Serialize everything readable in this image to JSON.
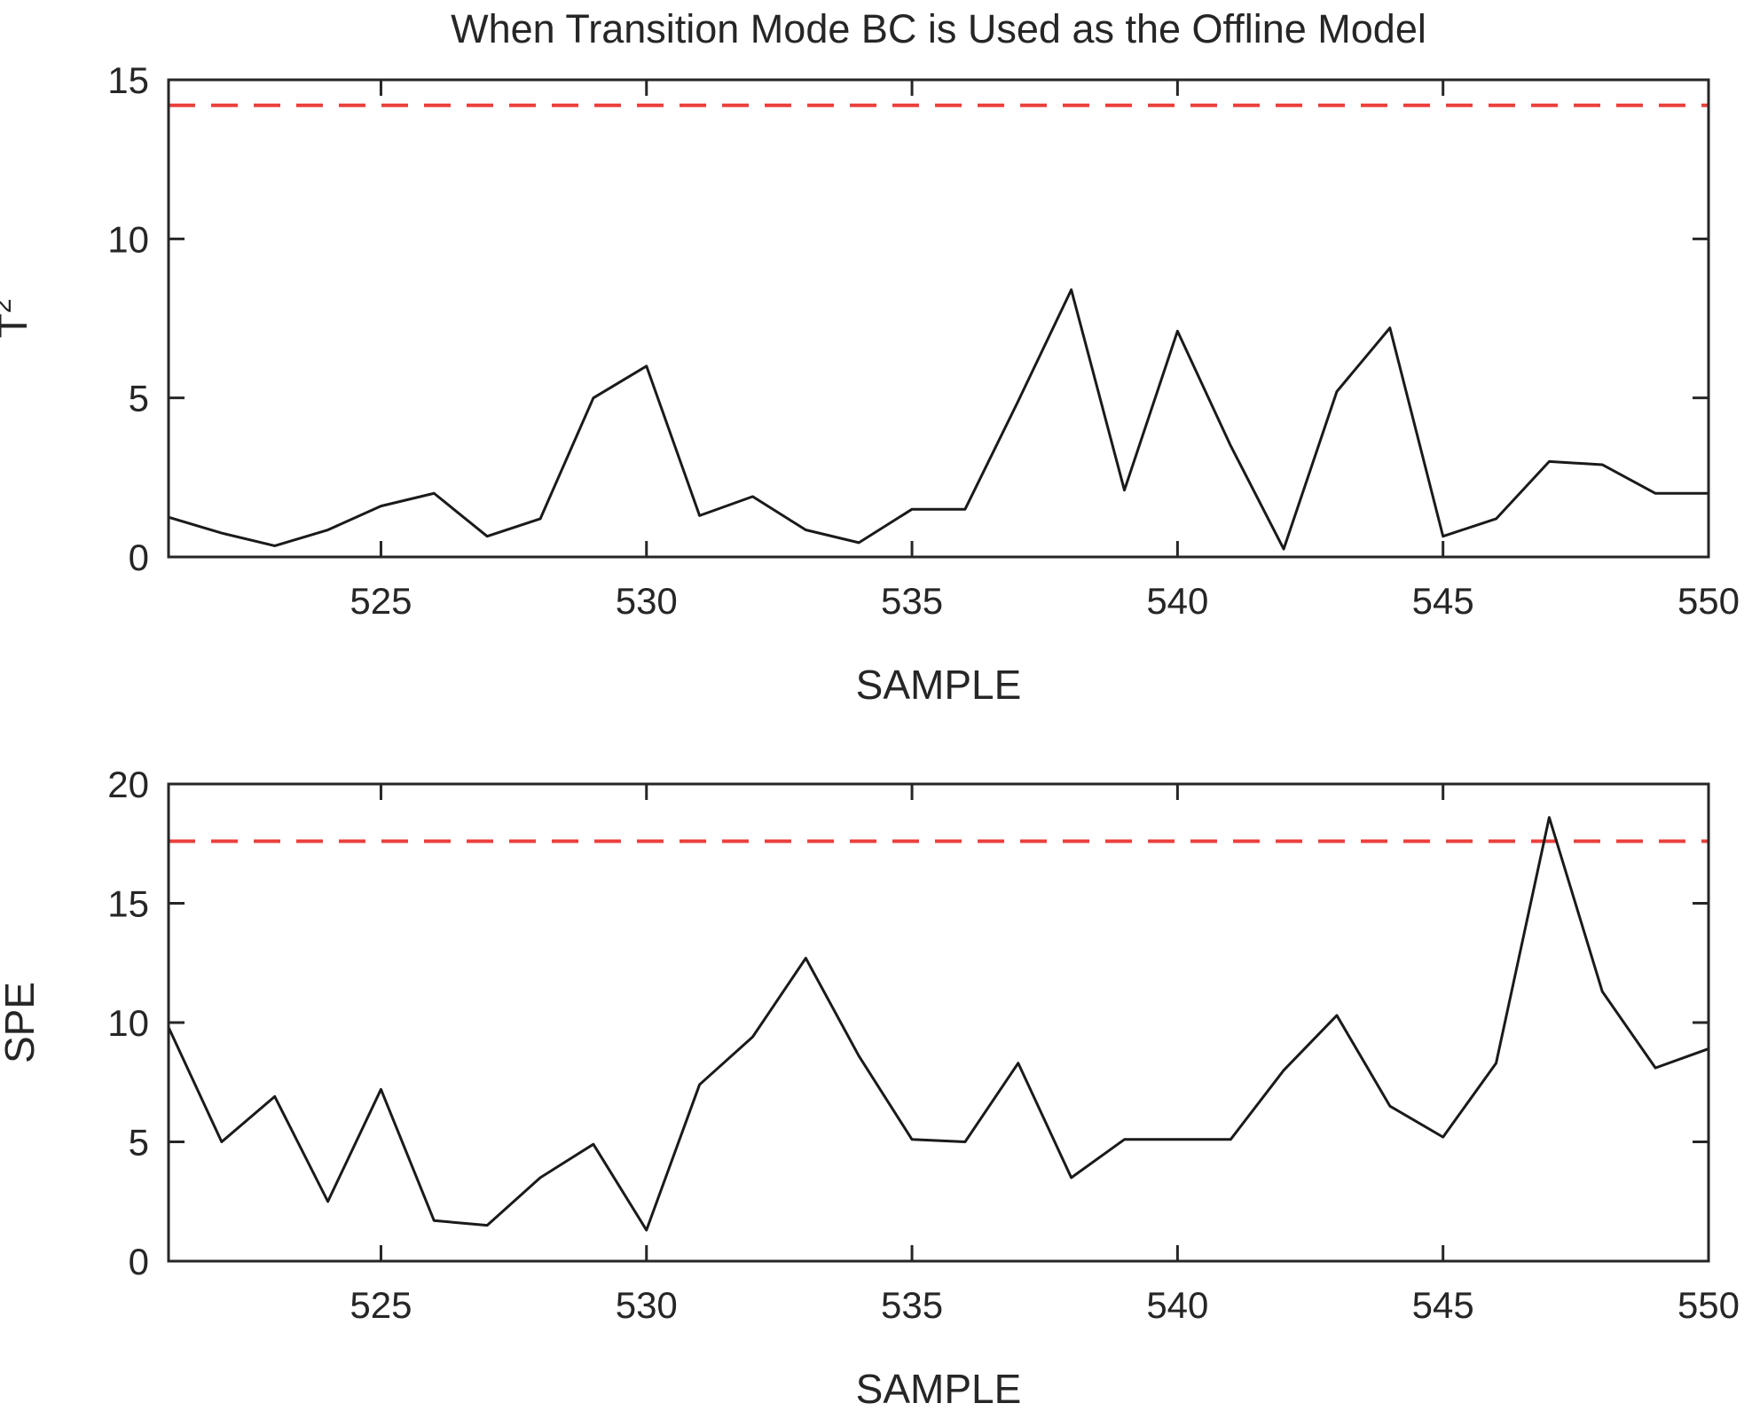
{
  "title": "When Transition Mode BC is Used as the Offline Model",
  "chart_data": [
    {
      "id": "t2",
      "type": "line",
      "title": "When Transition Mode BC is Used as the Offline Model",
      "xlabel": "SAMPLE",
      "ylabel": {
        "base": "T",
        "sup": "2"
      },
      "x": [
        521,
        522,
        523,
        524,
        525,
        526,
        527,
        528,
        529,
        530,
        531,
        532,
        533,
        534,
        535,
        536,
        537,
        538,
        539,
        540,
        541,
        542,
        543,
        544,
        545,
        546,
        547,
        548,
        549,
        550
      ],
      "values": [
        1.25,
        0.75,
        0.35,
        0.85,
        1.6,
        2.0,
        0.65,
        1.2,
        5.0,
        6.0,
        1.3,
        1.9,
        0.85,
        0.45,
        1.5,
        1.5,
        4.9,
        8.4,
        2.1,
        7.1,
        3.5,
        0.25,
        5.2,
        7.2,
        0.65,
        1.2,
        3.0,
        2.9,
        2.0,
        2.0
      ],
      "threshold": 14.2,
      "xlim": [
        521,
        550
      ],
      "ylim": [
        0,
        15
      ],
      "xticks": [
        525,
        530,
        535,
        540,
        545,
        550
      ],
      "yticks": [
        0,
        5,
        10,
        15
      ],
      "grid": "off",
      "line_color": "#1a1a1a",
      "threshold_color": "#ec3f3b",
      "threshold_style": "dashed"
    },
    {
      "id": "spe",
      "type": "line",
      "title": "",
      "xlabel": "SAMPLE",
      "ylabel": {
        "base": "SPE",
        "sup": ""
      },
      "x": [
        521,
        522,
        523,
        524,
        525,
        526,
        527,
        528,
        529,
        530,
        531,
        532,
        533,
        534,
        535,
        536,
        537,
        538,
        539,
        540,
        541,
        542,
        543,
        544,
        545,
        546,
        547,
        548,
        549,
        550
      ],
      "values": [
        9.8,
        5.0,
        6.9,
        2.5,
        7.2,
        1.7,
        1.5,
        3.5,
        4.9,
        1.3,
        7.4,
        9.4,
        12.7,
        8.6,
        5.1,
        5.0,
        8.3,
        3.5,
        5.1,
        5.1,
        5.1,
        8.0,
        10.3,
        6.5,
        5.2,
        8.3,
        18.6,
        11.3,
        8.1,
        8.9
      ],
      "threshold": 17.6,
      "xlim": [
        521,
        550
      ],
      "ylim": [
        0,
        20
      ],
      "xticks": [
        525,
        530,
        535,
        540,
        545,
        550
      ],
      "yticks": [
        0,
        5,
        10,
        15,
        20
      ],
      "grid": "off",
      "line_color": "#1a1a1a",
      "threshold_color": "#ec3f3b",
      "threshold_style": "dashed"
    }
  ]
}
